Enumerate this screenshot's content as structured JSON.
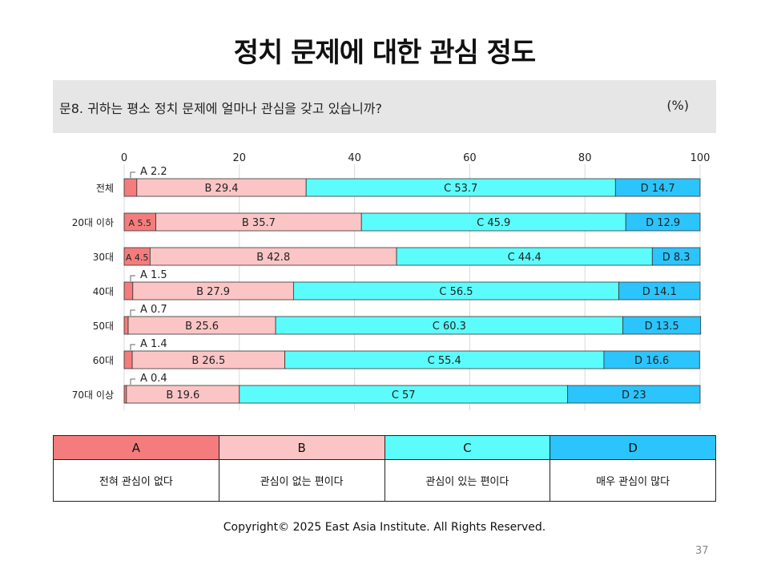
{
  "title": "정치 문제에 대한 관심 정도",
  "question": {
    "text": "문8. 귀하는 평소 정치 문제에 얼마나 관심을 갖고 있습니까?",
    "unit": "(%)"
  },
  "colors": {
    "A": "#f47c7c",
    "B": "#fcc5c5",
    "C": "#5cfcfc",
    "D": "#2cc4fc"
  },
  "chart_data": {
    "type": "bar",
    "stacked": true,
    "orientation": "horizontal",
    "xlim": [
      0,
      100
    ],
    "xticks": [
      0,
      20,
      40,
      60,
      80,
      100
    ],
    "grid": true,
    "categories": [
      "전체",
      "20대 이하",
      "30대",
      "40대",
      "50대",
      "60대",
      "70대 이상"
    ],
    "series": [
      {
        "name": "A",
        "values": [
          2.2,
          5.5,
          4.5,
          1.5,
          0.7,
          1.4,
          0.4
        ]
      },
      {
        "name": "B",
        "values": [
          29.4,
          35.7,
          42.8,
          27.9,
          25.6,
          26.5,
          19.6
        ]
      },
      {
        "name": "C",
        "values": [
          53.7,
          45.9,
          44.4,
          56.5,
          60.3,
          55.4,
          57
        ]
      },
      {
        "name": "D",
        "values": [
          14.7,
          12.9,
          8.3,
          14.1,
          13.5,
          16.6,
          23
        ]
      }
    ]
  },
  "legend": {
    "headers": [
      "A",
      "B",
      "C",
      "D"
    ],
    "descriptions": [
      "전혀 관심이 없다",
      "관심이 없는 편이다",
      "관심이 있는 편이다",
      "매우 관심이 많다"
    ]
  },
  "copyright": "Copyright© 2025 East Asia Institute. All Rights Reserved.",
  "page_number": "37"
}
